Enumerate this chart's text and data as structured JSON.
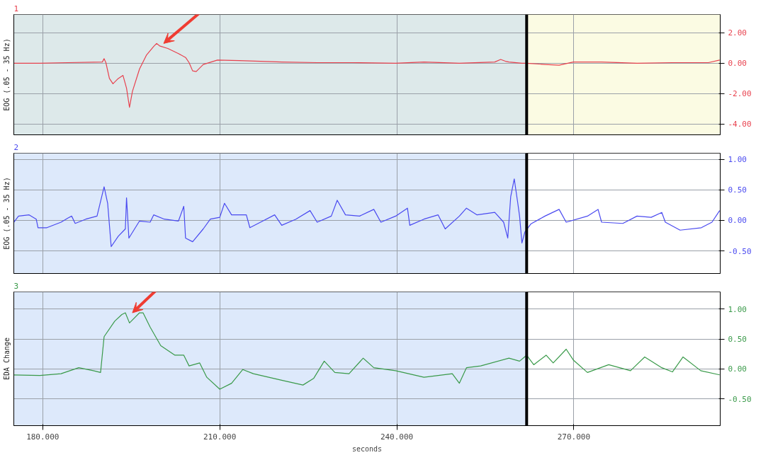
{
  "chart_data": [
    {
      "type": "line",
      "title": "1",
      "ylabel": "EOG (.05 - 35 Hz)",
      "tick_labels": "y",
      "grid": true,
      "xlim": [
        175.1,
        294.8
      ],
      "xticks": [
        {
          "value": 180,
          "label": null
        },
        {
          "value": 210,
          "label": null
        },
        {
          "value": 240,
          "label": null
        },
        {
          "value": 270,
          "label": null
        }
      ],
      "ylim": [
        -4.7,
        3.2
      ],
      "yticks": [
        {
          "value": 2,
          "label": "2.00"
        },
        {
          "value": 0,
          "label": "0.00"
        },
        {
          "value": -2,
          "label": "-2.00"
        },
        {
          "value": -4,
          "label": "-4.00"
        }
      ],
      "bands": [
        {
          "axis": "x",
          "from": 175.1,
          "to": 262.0,
          "color": "#dde9ea"
        },
        {
          "axis": "x",
          "from": 262.0,
          "to": 294.8,
          "color": "#fbfbe3"
        }
      ],
      "ref_lines": [
        {
          "axis": "x",
          "value": 262.0,
          "color": "#000000"
        }
      ],
      "series": [
        {
          "color": "#e8414e",
          "x": [
            175.1,
            179.5,
            184.3,
            190.1,
            190.4,
            190.7,
            191.3,
            191.9,
            192.8,
            193.6,
            194.2,
            194.7,
            195.2,
            196.4,
            197.6,
            198.8,
            199.3,
            199.8,
            201.2,
            203.0,
            204.2,
            204.8,
            205.4,
            206.0,
            207.2,
            209.6,
            213.3,
            220.5,
            226.5,
            232.5,
            239.8,
            244.6,
            250.6,
            256.6,
            257.6,
            258.4,
            259.0,
            261.2,
            262.0,
            265.1,
            267.5,
            269.9,
            274.7,
            280.7,
            286.7,
            292.8,
            294.7
          ],
          "values": [
            0,
            0,
            0.04,
            0.08,
            0.3,
            0.04,
            -1.0,
            -1.35,
            -1.0,
            -0.8,
            -1.64,
            -2.9,
            -1.85,
            -0.38,
            0.55,
            1.1,
            1.3,
            1.14,
            0.97,
            0.63,
            0.38,
            0.04,
            -0.5,
            -0.55,
            -0.08,
            0.21,
            0.17,
            0.08,
            0.04,
            0.04,
            0,
            0.08,
            0,
            0.08,
            0.25,
            0.13,
            0.08,
            0,
            0,
            -0.08,
            -0.13,
            0.08,
            0.08,
            0,
            0.04,
            0.04,
            0.21
          ]
        }
      ]
    },
    {
      "type": "line",
      "title": "2",
      "ylabel": "EOG (.05 - 35 Hz)",
      "tick_labels": "y",
      "grid": true,
      "xlim": [
        175.1,
        294.8
      ],
      "xticks": [
        {
          "value": 180,
          "label": null
        },
        {
          "value": 210,
          "label": null
        },
        {
          "value": 240,
          "label": null
        },
        {
          "value": 270,
          "label": null
        }
      ],
      "ylim": [
        -0.87,
        1.1
      ],
      "yticks": [
        {
          "value": 1,
          "label": "1.00"
        },
        {
          "value": 0.5,
          "label": "0.50"
        },
        {
          "value": 0,
          "label": "0.00"
        },
        {
          "value": -0.5,
          "label": "-0.50"
        }
      ],
      "bands": [
        {
          "axis": "x",
          "from": 175.1,
          "to": 262.0,
          "color": "#dde9fb"
        }
      ],
      "ref_lines": [
        {
          "axis": "x",
          "value": 262.0,
          "color": "#000000"
        }
      ],
      "series": [
        {
          "color": "#4a4af0",
          "x": [
            175.1,
            175.9,
            177.7,
            178.9,
            179.2,
            180.7,
            183.1,
            184.3,
            184.9,
            185.5,
            187.3,
            189.2,
            190.4,
            191.0,
            191.6,
            192.8,
            194.0,
            194.2,
            194.6,
            196.4,
            198.2,
            198.8,
            200.6,
            203.0,
            203.9,
            204.2,
            205.4,
            207.2,
            208.4,
            210.0,
            210.8,
            212.0,
            214.5,
            215.1,
            216.9,
            219.3,
            220.5,
            222.9,
            225.3,
            226.5,
            228.9,
            229.9,
            231.3,
            233.7,
            236.1,
            237.3,
            239.8,
            241.8,
            242.2,
            244.6,
            247.0,
            248.2,
            250.6,
            251.8,
            253.6,
            256.6,
            258.1,
            258.8,
            259.3,
            259.9,
            260.5,
            260.8,
            261.2,
            261.7,
            262.7,
            265.1,
            267.5,
            268.7,
            272.3,
            274.1,
            274.7,
            278.3,
            280.7,
            283.1,
            284.9,
            285.5,
            288.0,
            291.6,
            293.4,
            294.7
          ],
          "values": [
            -0.03,
            0.07,
            0.09,
            0.02,
            -0.12,
            -0.12,
            -0.03,
            0.04,
            0.07,
            -0.05,
            0.02,
            0.07,
            0.55,
            0.28,
            -0.43,
            -0.26,
            -0.14,
            0.37,
            -0.29,
            -0.01,
            -0.03,
            0.09,
            0.02,
            -0.01,
            0.23,
            -0.29,
            -0.35,
            -0.14,
            0.02,
            0.05,
            0.28,
            0.09,
            0.09,
            -0.12,
            -0.03,
            0.09,
            -0.08,
            0.02,
            0.16,
            -0.03,
            0.07,
            0.33,
            0.09,
            0.07,
            0.18,
            -0.03,
            0.07,
            0.2,
            -0.08,
            0.02,
            0.09,
            -0.14,
            0.07,
            0.2,
            0.09,
            0.13,
            -0.03,
            -0.29,
            0.39,
            0.68,
            0.28,
            0.07,
            -0.37,
            -0.19,
            -0.06,
            0.07,
            0.18,
            -0.03,
            0.07,
            0.18,
            -0.03,
            -0.05,
            0.07,
            0.05,
            0.13,
            -0.03,
            -0.16,
            -0.12,
            -0.03,
            0.16
          ]
        }
      ]
    },
    {
      "type": "line",
      "title": "3",
      "ylabel": "EDA Change",
      "xlabel": "seconds",
      "grid": true,
      "xlim": [
        175.1,
        294.8
      ],
      "xticks": [
        {
          "value": 180,
          "label": "180.000"
        },
        {
          "value": 210,
          "label": "210.000"
        },
        {
          "value": 240,
          "label": "240.000"
        },
        {
          "value": 270,
          "label": "270.000"
        }
      ],
      "ylim": [
        -0.95,
        1.29
      ],
      "yticks": [
        {
          "value": 1,
          "label": "1.00"
        },
        {
          "value": 0.5,
          "label": "0.50"
        },
        {
          "value": 0,
          "label": "0.00"
        },
        {
          "value": -0.5,
          "label": "-0.50"
        }
      ],
      "bands": [
        {
          "axis": "x",
          "from": 175.1,
          "to": 262.0,
          "color": "#dde9fb"
        }
      ],
      "ref_lines": [
        {
          "axis": "x",
          "value": 262.0,
          "color": "#000000"
        }
      ],
      "series": [
        {
          "color": "#3a9a4a",
          "x": [
            175.1,
            179.5,
            183.1,
            186.1,
            188.6,
            189.8,
            190.4,
            192.2,
            193.4,
            194.0,
            194.7,
            196.4,
            197.0,
            198.2,
            200.0,
            202.4,
            203.9,
            204.8,
            206.6,
            207.8,
            210.0,
            212.0,
            213.9,
            215.7,
            220.5,
            224.1,
            225.9,
            227.7,
            229.5,
            231.9,
            234.3,
            236.1,
            239.8,
            244.6,
            249.4,
            250.6,
            251.8,
            254.2,
            259.0,
            260.8,
            262.0,
            263.2,
            265.3,
            266.5,
            268.7,
            269.9,
            272.3,
            275.9,
            279.6,
            282.0,
            284.9,
            286.7,
            288.5,
            291.5,
            294.7
          ],
          "values": [
            -0.1,
            -0.11,
            -0.08,
            0.02,
            -0.03,
            -0.06,
            0.54,
            0.8,
            0.91,
            0.94,
            0.77,
            0.94,
            0.94,
            0.7,
            0.39,
            0.23,
            0.23,
            0.05,
            0.1,
            -0.14,
            -0.34,
            -0.24,
            -0.01,
            -0.08,
            -0.19,
            -0.27,
            -0.16,
            0.13,
            -0.06,
            -0.08,
            0.18,
            0.02,
            -0.03,
            -0.14,
            -0.08,
            -0.24,
            0.02,
            0.05,
            0.18,
            0.13,
            0.23,
            0.07,
            0.23,
            0.1,
            0.33,
            0.15,
            -0.06,
            0.07,
            -0.03,
            0.2,
            0.02,
            -0.05,
            0.2,
            -0.03,
            -0.1
          ]
        }
      ]
    }
  ]
}
